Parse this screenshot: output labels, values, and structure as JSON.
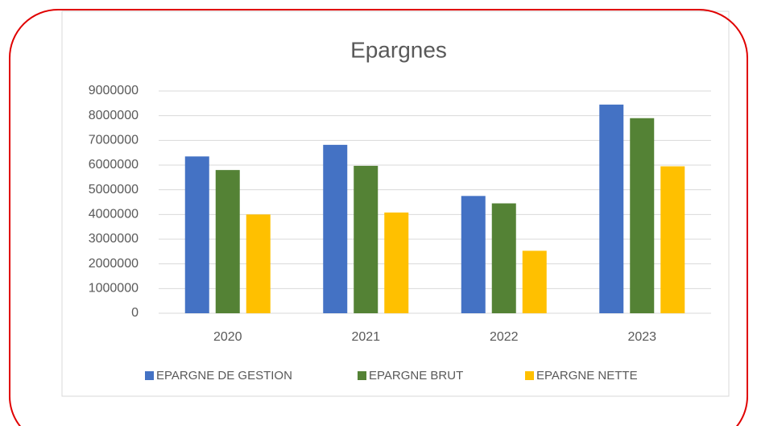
{
  "chart_data": {
    "type": "bar",
    "title": "Epargnes",
    "categories": [
      "2020",
      "2021",
      "2022",
      "2023"
    ],
    "series": [
      {
        "name": "EPARGNE DE GESTION",
        "color": "#4472c4",
        "values": [
          6350000,
          6820000,
          4750000,
          8450000
        ]
      },
      {
        "name": "EPARGNE BRUT",
        "color": "#548235",
        "values": [
          5800000,
          5970000,
          4450000,
          7900000
        ]
      },
      {
        "name": "EPARGNE NETTE",
        "color": "#ffc000",
        "values": [
          4000000,
          4080000,
          2530000,
          5950000
        ]
      }
    ],
    "ylim": [
      0,
      9000000
    ],
    "yticks": [
      0,
      1000000,
      2000000,
      3000000,
      4000000,
      5000000,
      6000000,
      7000000,
      8000000,
      9000000
    ],
    "grid": true,
    "legend": "bottom"
  }
}
